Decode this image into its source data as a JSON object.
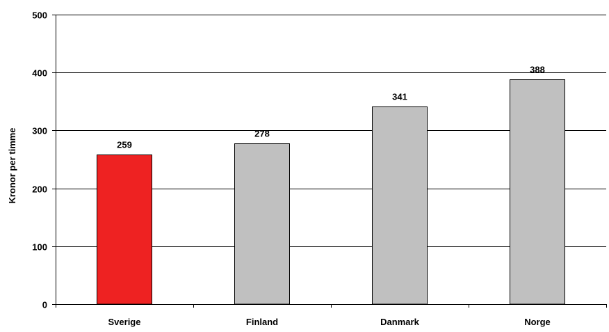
{
  "chart_data": {
    "type": "bar",
    "title": "",
    "xlabel": "",
    "ylabel": "Kronor per timme",
    "categories": [
      "Sverige",
      "Finland",
      "Danmark",
      "Norge"
    ],
    "values": [
      259,
      278,
      341,
      388
    ],
    "data_labels": [
      "259",
      "278",
      "341",
      "388"
    ],
    "ylim": [
      0,
      500
    ],
    "yticks": [
      0,
      100,
      200,
      300,
      400,
      500
    ],
    "ytick_labels": [
      "0",
      "100",
      "200",
      "300",
      "400",
      "500"
    ],
    "grid": true,
    "legend": "none",
    "colors": {
      "highlight": "#ee2222",
      "bar": "#c0c0c0",
      "bar_stroke": "#000000",
      "gridline": "#000000",
      "axis": "#000000"
    },
    "highlight_index": 0
  }
}
